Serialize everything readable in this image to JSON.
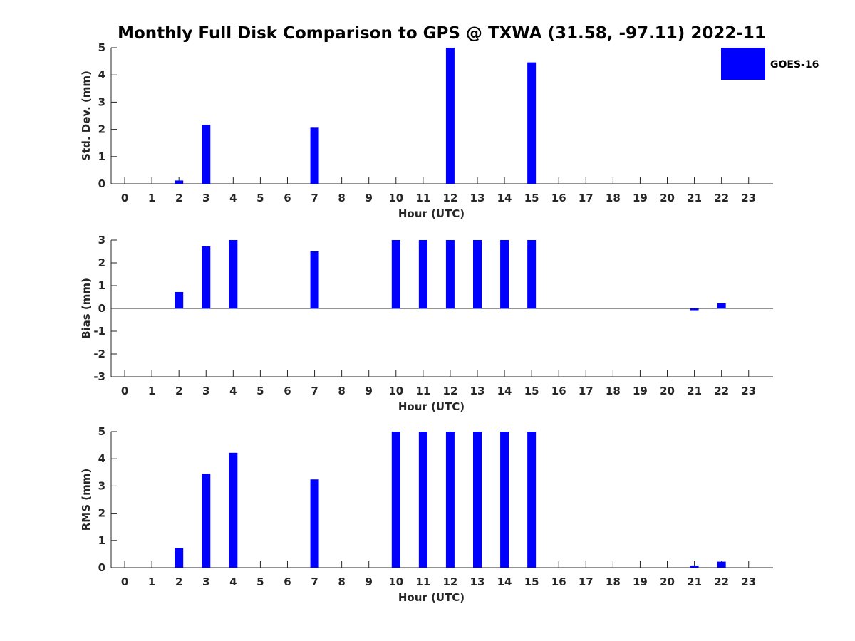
{
  "figure": {
    "title": "Monthly Full Disk Comparison to GPS @ TXWA (31.58, -97.11) 2022-11"
  },
  "legend": {
    "label": "GOES-16",
    "color": "#0000ff",
    "placement": "top-right"
  },
  "chart_data": [
    {
      "type": "bar",
      "xlabel": "Hour (UTC)",
      "ylabel": "Std. Dev. (mm)",
      "xlim": [
        -0.5,
        23.9
      ],
      "ylim": [
        0,
        5
      ],
      "yticks": [
        0,
        1,
        2,
        3,
        4,
        5
      ],
      "categories": [
        0,
        1,
        2,
        3,
        4,
        5,
        6,
        7,
        8,
        9,
        10,
        11,
        12,
        13,
        14,
        15,
        16,
        17,
        18,
        19,
        20,
        21,
        22,
        23
      ],
      "series": [
        {
          "name": "GOES-16",
          "color": "#0000ff",
          "values": [
            null,
            null,
            0.12,
            2.17,
            null,
            null,
            null,
            2.06,
            null,
            null,
            null,
            null,
            5.0,
            null,
            null,
            4.46,
            null,
            null,
            null,
            null,
            null,
            null,
            null,
            null
          ]
        }
      ],
      "grid": false
    },
    {
      "type": "bar",
      "xlabel": "Hour (UTC)",
      "ylabel": "Bias (mm)",
      "xlim": [
        -0.5,
        23.9
      ],
      "ylim": [
        -3,
        3
      ],
      "yticks": [
        -3,
        -2,
        -1,
        0,
        1,
        2,
        3
      ],
      "categories": [
        0,
        1,
        2,
        3,
        4,
        5,
        6,
        7,
        8,
        9,
        10,
        11,
        12,
        13,
        14,
        15,
        16,
        17,
        18,
        19,
        20,
        21,
        22,
        23
      ],
      "series": [
        {
          "name": "GOES-16",
          "color": "#0000ff",
          "values": [
            null,
            null,
            0.72,
            2.72,
            3.0,
            null,
            null,
            2.5,
            null,
            null,
            3.0,
            3.0,
            3.0,
            3.0,
            3.0,
            3.0,
            null,
            null,
            null,
            null,
            null,
            -0.08,
            0.22,
            null
          ]
        }
      ],
      "zero_line": true,
      "grid": false
    },
    {
      "type": "bar",
      "xlabel": "Hour (UTC)",
      "ylabel": "RMS (mm)",
      "xlim": [
        -0.5,
        23.9
      ],
      "ylim": [
        0,
        5
      ],
      "yticks": [
        0,
        1,
        2,
        3,
        4,
        5
      ],
      "categories": [
        0,
        1,
        2,
        3,
        4,
        5,
        6,
        7,
        8,
        9,
        10,
        11,
        12,
        13,
        14,
        15,
        16,
        17,
        18,
        19,
        20,
        21,
        22,
        23
      ],
      "series": [
        {
          "name": "GOES-16",
          "color": "#0000ff",
          "values": [
            null,
            null,
            0.72,
            3.45,
            4.22,
            null,
            null,
            3.24,
            null,
            null,
            5.0,
            5.0,
            5.0,
            5.0,
            5.0,
            5.0,
            null,
            null,
            null,
            null,
            null,
            0.08,
            0.22,
            null
          ]
        }
      ],
      "grid": false
    }
  ]
}
